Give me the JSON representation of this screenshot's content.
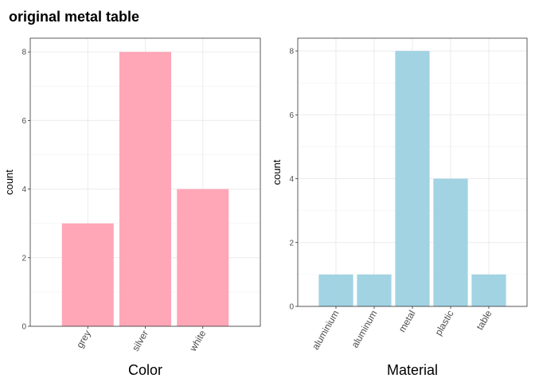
{
  "title": "original metal table",
  "chart_data": [
    {
      "type": "bar",
      "categories": [
        "grey",
        "silver",
        "white"
      ],
      "values": [
        3,
        8,
        4
      ],
      "xlabel": "Color",
      "ylabel": "count",
      "ylim": [
        0,
        8.4
      ],
      "yticks": [
        0,
        2,
        4,
        6,
        8
      ],
      "bar_color": "#FFA6B7",
      "grid": true
    },
    {
      "type": "bar",
      "categories": [
        "aluminium",
        "aluminum",
        "metal",
        "plastic",
        "table"
      ],
      "values": [
        1,
        1,
        8,
        4,
        1
      ],
      "xlabel": "Material",
      "ylabel": "count",
      "ylim": [
        0,
        8.4
      ],
      "yticks": [
        0,
        2,
        4,
        6,
        8
      ],
      "bar_color": "#A1D3E3",
      "grid": true
    }
  ]
}
